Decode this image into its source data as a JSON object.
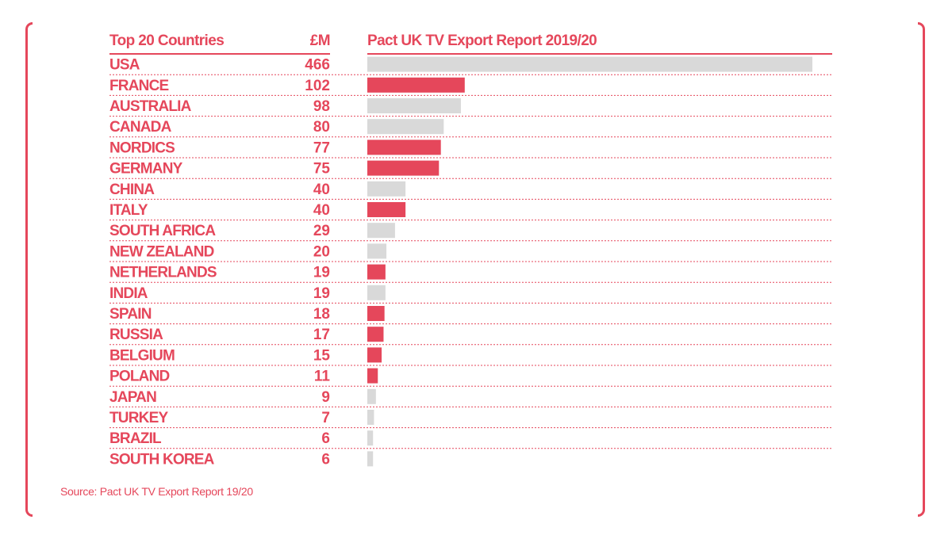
{
  "header": {
    "countries_label": "Top 20 Countries",
    "value_label": "£M",
    "chart_title": "Pact UK TV Export Report 2019/20"
  },
  "source": "Source: Pact UK TV Export Report 19/20",
  "colors": {
    "accent": "#e5475b",
    "bar_grey": "#d9d9d9",
    "divider": "#e5475b"
  },
  "chart_data": {
    "type": "bar",
    "orientation": "horizontal",
    "title": "Pact UK TV Export Report 2019/20",
    "xlabel": "",
    "ylabel": "£M",
    "xlim": [
      0,
      466
    ],
    "categories": [
      "USA",
      "FRANCE",
      "AUSTRALIA",
      "CANADA",
      "NORDICS",
      "GERMANY",
      "CHINA",
      "ITALY",
      "SOUTH AFRICA",
      "NEW ZEALAND",
      "NETHERLANDS",
      "INDIA",
      "SPAIN",
      "RUSSIA",
      "BELGIUM",
      "POLAND",
      "JAPAN",
      "TURKEY",
      "BRAZIL",
      "SOUTH KOREA"
    ],
    "values": [
      466,
      102,
      98,
      80,
      77,
      75,
      40,
      40,
      29,
      20,
      19,
      19,
      18,
      17,
      15,
      11,
      9,
      7,
      6,
      6
    ],
    "value_labels": [
      "466",
      "102",
      "98",
      "80",
      "77",
      "75",
      "40",
      "40",
      "29",
      "20",
      "19",
      "19",
      "18",
      "17",
      "15",
      "11",
      "9",
      "7",
      "6",
      "6"
    ],
    "highlighted": [
      false,
      true,
      false,
      false,
      true,
      true,
      false,
      true,
      false,
      false,
      true,
      false,
      true,
      true,
      true,
      true,
      false,
      false,
      false,
      false
    ]
  }
}
